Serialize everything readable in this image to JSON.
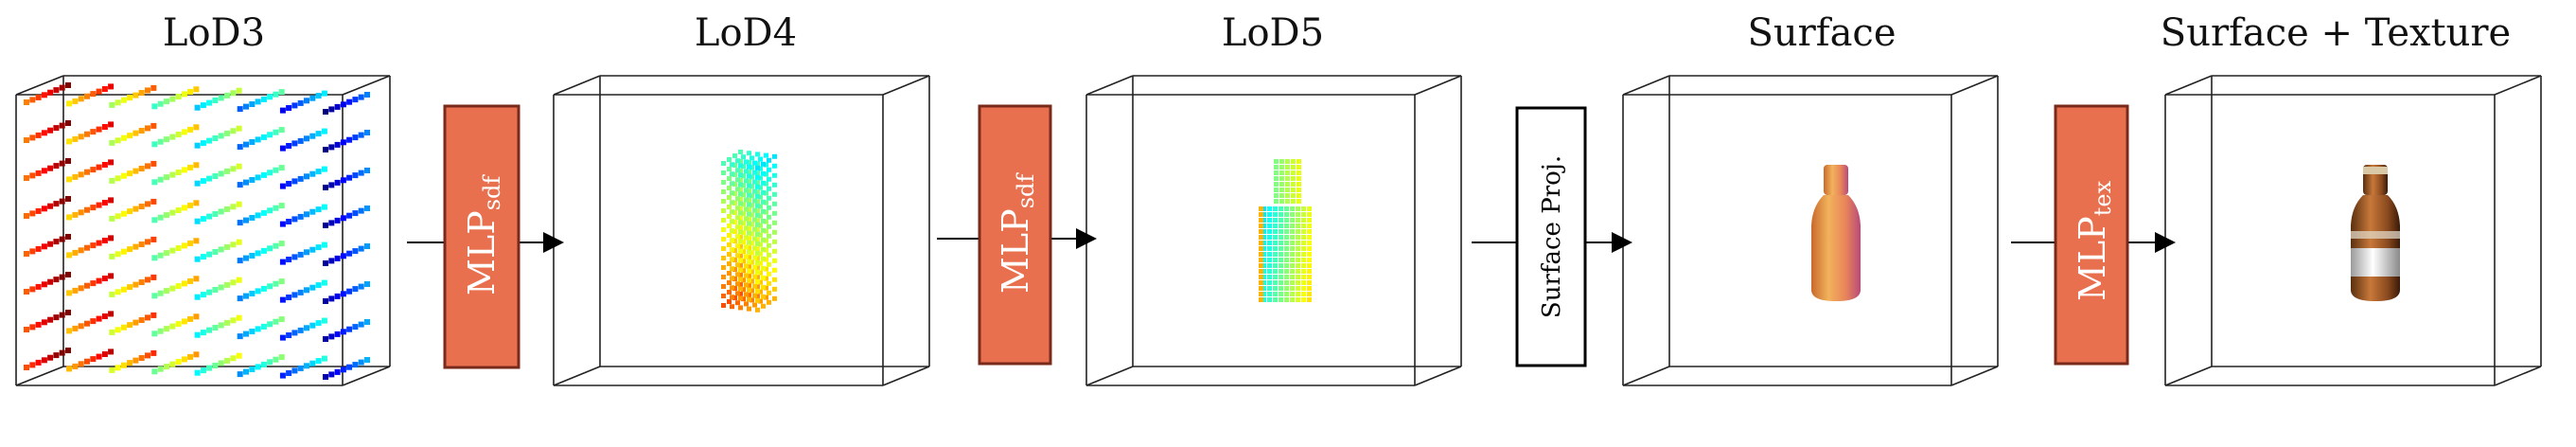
{
  "stages": [
    {
      "title": "LoD3",
      "content": "grid"
    },
    {
      "title": "LoD4",
      "content": "block"
    },
    {
      "title": "LoD5",
      "content": "voxel-bottle"
    },
    {
      "title": "Surface",
      "content": "surface-bottle"
    },
    {
      "title": "Surface + Texture",
      "content": "textured-bottle"
    }
  ],
  "operators": [
    {
      "main": "MLP",
      "sub": "sdf",
      "style": "filled"
    },
    {
      "main": "MLP",
      "sub": "sdf",
      "style": "filled"
    },
    {
      "main": "Surface Proj.",
      "sub": "",
      "style": "outline"
    },
    {
      "main": "MLP",
      "sub": "tex",
      "style": "filled"
    }
  ],
  "colors": {
    "operator_fill": "#E8704F",
    "operator_border": "#7A2A1A",
    "arrow": "#000000"
  }
}
